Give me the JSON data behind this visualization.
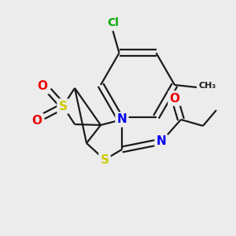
{
  "background_color": "#ececec",
  "bond_color": "#1a1a1a",
  "atom_colors": {
    "N": "#0000ee",
    "S": "#cccc00",
    "O": "#ee0000",
    "Cl": "#00aa00",
    "C": "#1a1a1a"
  },
  "font_size_atom": 11,
  "line_width": 1.6,
  "figsize": [
    3.0,
    3.0
  ],
  "dpi": 100
}
